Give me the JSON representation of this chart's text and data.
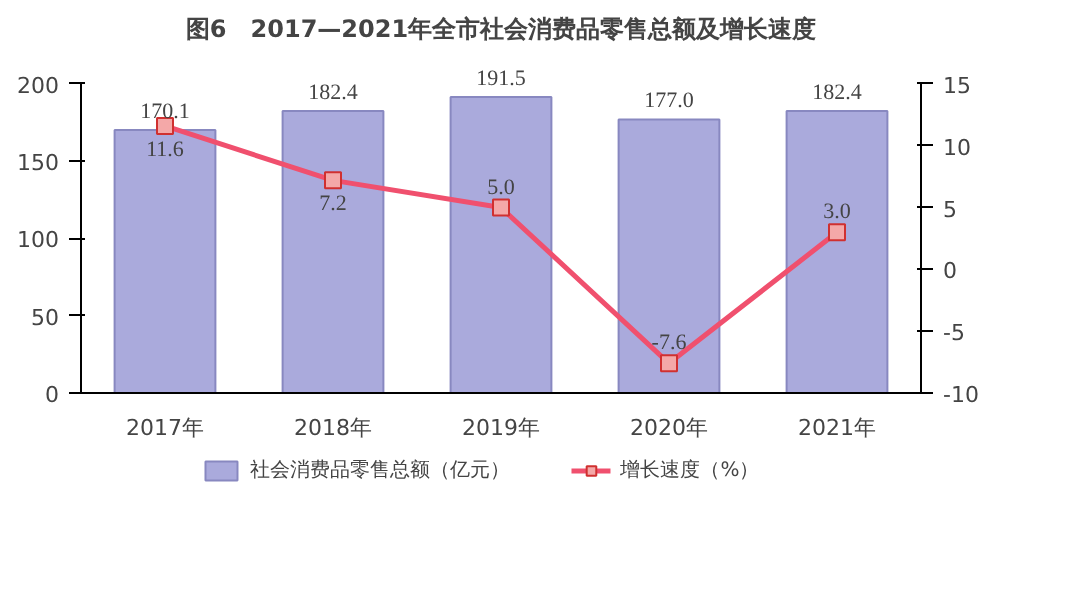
{
  "chart_data": {
    "type": "bar",
    "title": "图6　2017—2021年全市社会消费品零售总额及增长速度",
    "categories": [
      "2017年",
      "2018年",
      "2019年",
      "2020年",
      "2021年"
    ],
    "series": [
      {
        "name": "社会消费品零售总额（亿元）",
        "color": "#aaaadc",
        "values": [
          170.1,
          182.4,
          191.5,
          177.0,
          182.4
        ],
        "value_labels": [
          "170.1",
          "182.4",
          "191.5",
          "177.0",
          "182.4"
        ]
      },
      {
        "name": "增长速度（%）",
        "type": "line",
        "axis": "y2",
        "color": "#f0506e",
        "values": [
          11.6,
          7.2,
          5.0,
          -7.6,
          3.0
        ],
        "value_labels": [
          "11.6",
          "7.2",
          "5.0",
          "-7.6",
          "3.0"
        ]
      }
    ],
    "ylim": [
      0,
      200
    ],
    "yticks": [
      0,
      50,
      100,
      150,
      200
    ],
    "y2lim": [
      -10,
      15
    ],
    "y2ticks": [
      -10,
      -5,
      0,
      5,
      10,
      15
    ],
    "grid": false,
    "legend": "bottom",
    "marker": "square"
  }
}
